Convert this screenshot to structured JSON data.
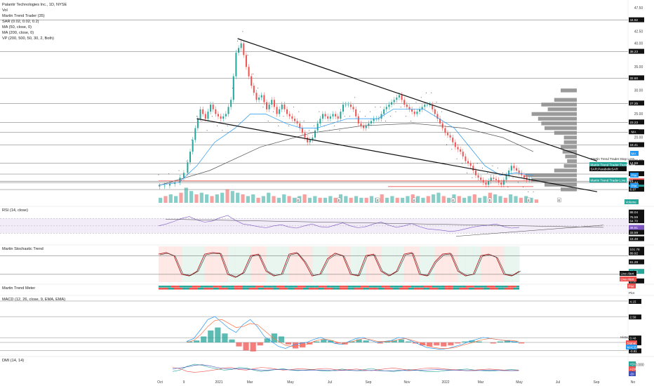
{
  "header": {
    "symbol_line": "Palantir Technologies Inc., 1D, NYSE",
    "indicators": [
      "Vol",
      "Martin Trend Trader (35)",
      "SAR (0.02, 0.02, 0.2)",
      "MA (50, close, 0)",
      "MA (200, close, 0)",
      "VP (200, 500, 50, 30, 2, Both)"
    ]
  },
  "panes": {
    "rsi_title": "RSI (14, close)",
    "stoch_title": "Martin Stochastic Trend",
    "meter_title": "Martin Trend Meter",
    "macd_title": "MACD (12, 26, close, 9, EMA, EMA)",
    "dmi_title": "DMI (14, 14)"
  },
  "colors": {
    "up": "#26a69a",
    "down": "#ef5350",
    "ma50": "#2196f3",
    "ma200": "#555555",
    "vp": "#8a8a8a",
    "rsi": "#7e57c2",
    "grid": "#d4d4d4"
  },
  "chart_data": [
    {
      "type": "candlestick",
      "pane": "price",
      "x_ticks": [
        "Oct",
        "9",
        "2021",
        "Mar",
        "May",
        "Jul",
        "Sep",
        "Nov",
        "2022",
        "Mar",
        "May",
        "Jul",
        "Sep",
        "No"
      ],
      "y_ticks": [
        "47.50",
        "42.50",
        "40.00",
        "35.00",
        "30.00",
        "25.00",
        "20.00",
        "15.00",
        "10.00"
      ],
      "ylim": [
        6,
        48
      ],
      "price_levels": [
        "44.92",
        "38.23",
        "32.60",
        "27.25",
        "23.23",
        "21.15",
        "18.41",
        "14.59",
        "12.25",
        "10.74",
        "10.73",
        "10.44",
        "8.97"
      ],
      "overlay_labels": [
        "Martin Trend Trader:Stop Loss",
        "Martin Trend Trader:Trend Line",
        "SAR:ParabolicSAR",
        "Martin Trend Trader:Live Alert"
      ],
      "side_tags": [
        "MA",
        "MA",
        "Plot",
        "Plot",
        "Volume"
      ],
      "earnings_marker": "E",
      "close_path": [
        [
          0,
          9.6
        ],
        [
          4,
          9.8
        ],
        [
          8,
          10.5
        ],
        [
          11,
          12.5
        ],
        [
          13,
          17
        ],
        [
          15,
          22
        ],
        [
          17,
          26
        ],
        [
          19,
          24
        ],
        [
          21,
          27
        ],
        [
          23,
          25
        ],
        [
          25,
          24
        ],
        [
          27,
          25
        ],
        [
          29,
          28
        ],
        [
          31,
          38
        ],
        [
          33,
          40
        ],
        [
          35,
          35
        ],
        [
          37,
          31
        ],
        [
          39,
          28
        ],
        [
          41,
          29
        ],
        [
          43,
          26
        ],
        [
          45,
          28
        ],
        [
          47,
          25
        ],
        [
          49,
          27
        ],
        [
          51,
          25
        ],
        [
          53,
          24
        ],
        [
          55,
          23
        ],
        [
          57,
          21
        ],
        [
          59,
          19
        ],
        [
          61,
          20
        ],
        [
          63,
          23
        ],
        [
          65,
          25
        ],
        [
          67,
          24
        ],
        [
          69,
          25
        ],
        [
          71,
          24
        ],
        [
          73,
          27
        ],
        [
          75,
          27
        ],
        [
          77,
          26
        ],
        [
          79,
          23
        ],
        [
          81,
          22
        ],
        [
          83,
          23
        ],
        [
          85,
          24
        ],
        [
          87,
          24
        ],
        [
          89,
          26
        ],
        [
          91,
          27
        ],
        [
          93,
          28
        ],
        [
          95,
          29
        ],
        [
          97,
          27
        ],
        [
          99,
          26
        ],
        [
          101,
          25
        ],
        [
          103,
          26
        ],
        [
          105,
          27
        ],
        [
          107,
          27
        ],
        [
          109,
          25
        ],
        [
          111,
          23
        ],
        [
          113,
          21
        ],
        [
          115,
          20
        ],
        [
          117,
          18
        ],
        [
          119,
          17
        ],
        [
          121,
          15
        ],
        [
          123,
          14
        ],
        [
          125,
          12
        ],
        [
          127,
          11
        ],
        [
          129,
          10
        ],
        [
          131,
          11.5
        ],
        [
          133,
          11
        ],
        [
          135,
          10
        ],
        [
          137,
          12
        ],
        [
          139,
          14
        ],
        [
          141,
          13
        ],
        [
          143,
          12
        ],
        [
          145,
          11
        ],
        [
          147,
          11
        ]
      ],
      "ma50_path": [
        [
          0,
          9.9
        ],
        [
          8,
          10.5
        ],
        [
          15,
          14
        ],
        [
          22,
          19
        ],
        [
          30,
          22
        ],
        [
          36,
          25
        ],
        [
          42,
          25
        ],
        [
          50,
          23
        ],
        [
          56,
          22
        ],
        [
          62,
          22
        ],
        [
          68,
          23
        ],
        [
          74,
          24
        ],
        [
          80,
          24
        ],
        [
          86,
          24
        ],
        [
          92,
          26
        ],
        [
          98,
          26
        ],
        [
          104,
          26
        ],
        [
          110,
          24
        ],
        [
          116,
          22
        ],
        [
          122,
          18
        ],
        [
          128,
          14
        ],
        [
          134,
          12
        ],
        [
          140,
          12.5
        ],
        [
          147,
          12
        ]
      ],
      "ma200_path": [
        [
          0,
          9.8
        ],
        [
          20,
          13
        ],
        [
          40,
          18
        ],
        [
          60,
          21
        ],
        [
          80,
          22.5
        ],
        [
          100,
          23
        ],
        [
          120,
          22
        ],
        [
          135,
          20
        ],
        [
          147,
          17
        ]
      ],
      "trend_lines": [
        [
          [
            31,
            41
          ],
          [
            172,
            15
          ]
        ],
        [
          [
            15,
            24
          ],
          [
            172,
            8.5
          ]
        ]
      ],
      "support_lines": [
        [
          [
            90,
            9.6
          ],
          [
            147,
            9.6
          ]
        ],
        [
          [
            0,
            10.8
          ],
          [
            147,
            10.8
          ]
        ]
      ],
      "volume_profile": [
        [
          30,
          0.25
        ],
        [
          28,
          0.35
        ],
        [
          27,
          0.55
        ],
        [
          26,
          0.45
        ],
        [
          25,
          0.7
        ],
        [
          24,
          0.6
        ],
        [
          23,
          0.55
        ],
        [
          22,
          0.5
        ],
        [
          21,
          0.35
        ],
        [
          20,
          0.2
        ],
        [
          19,
          0.2
        ],
        [
          18,
          0.25
        ],
        [
          17,
          0.22
        ],
        [
          16,
          0.18
        ],
        [
          15,
          0.15
        ],
        [
          14,
          0.2
        ],
        [
          13,
          0.35
        ],
        [
          12,
          0.8
        ],
        [
          11,
          0.7
        ],
        [
          10,
          0.5
        ],
        [
          9,
          0.25
        ]
      ],
      "volume": [
        0.3,
        0.4,
        0.5,
        0.4,
        0.6,
        0.9,
        0.7,
        0.5,
        0.6,
        0.5,
        0.4,
        0.5,
        0.6,
        0.8,
        0.7,
        0.6,
        0.5,
        0.4,
        0.5,
        0.3,
        0.4,
        0.6,
        0.4,
        0.3,
        0.5,
        0.4,
        0.3,
        0.4,
        0.5,
        0.3,
        0.4,
        0.3,
        0.3,
        0.4,
        0.3,
        0.5,
        0.4,
        0.3,
        0.4,
        0.3,
        0.3,
        0.4,
        0.3,
        0.5,
        0.3,
        0.4,
        0.3,
        0.3,
        0.4,
        0.5,
        0.4,
        0.3,
        0.4,
        0.5,
        0.6,
        0.4,
        0.3,
        0.5,
        0.4,
        0.3,
        0.4,
        0.5,
        0.3,
        0.4,
        0.6,
        0.5,
        0.4,
        0.3,
        0.5,
        0.4,
        0.3,
        0.4,
        0.3,
        0.2
      ]
    },
    {
      "type": "line",
      "pane": "rsi",
      "y_ticks": [
        "88.04",
        "75.59",
        "64.70",
        "46.81",
        "33.59",
        "16.48"
      ],
      "ylim": [
        10,
        95
      ],
      "series": [
        {
          "values": [
            50,
            55,
            62,
            70,
            75,
            66,
            60,
            63,
            72,
            78,
            65,
            55,
            52,
            48,
            45,
            50,
            53,
            47,
            44,
            50,
            55,
            48,
            46,
            52,
            58,
            50,
            45,
            48,
            55,
            60,
            52,
            46,
            50,
            56,
            48,
            42,
            40,
            38,
            35,
            37,
            42,
            47,
            50,
            52,
            55,
            48,
            44,
            46
          ]
        }
      ]
    },
    {
      "type": "line",
      "pane": "stochastic",
      "y_ticks": [
        "101.78",
        "89.92",
        "61.28",
        "30.65",
        "0.00"
      ],
      "ylim": [
        -5,
        110
      ],
      "side_tags": [
        "Live Alert",
        "Live Alert"
      ],
      "series": [
        {
          "values": [
            85,
            90,
            80,
            20,
            15,
            30,
            85,
            90,
            88,
            20,
            10,
            25,
            80,
            85,
            30,
            15,
            20,
            85,
            90,
            60,
            15,
            20,
            70,
            88,
            80,
            20,
            15,
            80,
            85,
            30,
            15,
            30,
            85,
            90,
            20,
            15,
            60,
            85,
            88,
            30,
            15,
            20,
            80,
            85,
            75,
            20,
            15,
            30
          ]
        }
      ]
    },
    {
      "type": "bar",
      "pane": "trend_meter",
      "side_tags": [
        "Plot",
        "Plot"
      ]
    },
    {
      "type": "bar",
      "pane": "macd",
      "y_ticks": [
        "4.15",
        "2.59",
        "0.48",
        "0.00",
        "-0.81"
      ],
      "ylim": [
        -1.2,
        4.5
      ],
      "side_tags": [
        "Histogram",
        "Signal",
        "MACD"
      ],
      "histogram": [
        0.1,
        0.2,
        0.6,
        1.2,
        1.5,
        0.9,
        0.3,
        -0.4,
        -0.8,
        -0.9,
        -0.3,
        0.4,
        0.9,
        0.6,
        -0.2,
        -0.6,
        -0.5,
        -0.2,
        0.1,
        0.3,
        0.2,
        -0.1,
        -0.2,
        0.1,
        0.3,
        0.2,
        0,
        -0.1,
        0.1,
        0.2,
        0.3,
        0.1,
        -0.1,
        -0.3,
        -0.4,
        -0.3,
        -0.4,
        -0.3,
        -0.1,
        0.1,
        0.2,
        0.1,
        0,
        -0.1,
        0.1,
        0.2,
        0.1,
        -0.1
      ],
      "macd": [
        0.1,
        0.4,
        1.3,
        2.3,
        2.6,
        2.0,
        1.4,
        1.0,
        1.8,
        2.3,
        1.6,
        0.6,
        0.1,
        -0.4,
        -0.6,
        -0.3,
        -0.1,
        0,
        0.3,
        0.5,
        0.2,
        -0.1,
        -0.2,
        0.1,
        0.4,
        0.5,
        0.2,
        0,
        0.1,
        0.2,
        0.5,
        0.4,
        0.1,
        -0.2,
        -0.5,
        -0.6,
        -0.7,
        -0.6,
        -0.4,
        -0.2,
        0.1,
        0.3,
        0.5,
        0.4,
        0.3,
        0.2,
        0.1,
        0
      ],
      "signal": [
        0,
        0.2,
        0.8,
        1.6,
        2.2,
        2.3,
        1.9,
        1.5,
        1.6,
        1.9,
        1.8,
        1.2,
        0.6,
        0.1,
        -0.3,
        -0.4,
        -0.3,
        -0.2,
        0.1,
        0.3,
        0.3,
        0.1,
        -0.1,
        0,
        0.2,
        0.4,
        0.3,
        0.1,
        0.1,
        0.1,
        0.3,
        0.4,
        0.2,
        0,
        -0.3,
        -0.5,
        -0.6,
        -0.6,
        -0.5,
        -0.3,
        -0.1,
        0.1,
        0.3,
        0.4,
        0.3,
        0.2,
        0.2,
        0.1
      ]
    },
    {
      "type": "line",
      "pane": "dmi",
      "y_ticks": [
        "40.000"
      ],
      "ylim": [
        0,
        60
      ],
      "side_tags": [
        "+DI",
        "ADX",
        "-DI"
      ],
      "series": [
        {
          "values": [
            15,
            20,
            35,
            42,
            38,
            30,
            25,
            20,
            22,
            30,
            28,
            20,
            15,
            18,
            22,
            25,
            20,
            18,
            20,
            22,
            18,
            16,
            20,
            24,
            20,
            18,
            22,
            26,
            20,
            17,
            15,
            18,
            22,
            20,
            16,
            14,
            15,
            18,
            20,
            22,
            24,
            20,
            18,
            16,
            18,
            20,
            22,
            20
          ]
        },
        {
          "values": [
            30,
            25,
            15,
            12,
            14,
            18,
            22,
            28,
            30,
            22,
            20,
            25,
            30,
            28,
            24,
            20,
            22,
            25,
            24,
            22,
            25,
            26,
            22,
            20,
            22,
            24,
            20,
            18,
            22,
            25,
            28,
            24,
            20,
            22,
            26,
            28,
            27,
            24,
            22,
            20,
            18,
            20,
            22,
            24,
            22,
            20,
            18,
            20
          ]
        },
        {
          "values": [
            25,
            28,
            32,
            38,
            40,
            36,
            30,
            26,
            24,
            25,
            24,
            22,
            20,
            20,
            22,
            22,
            21,
            20,
            19,
            20,
            20,
            19,
            18,
            19,
            19,
            18,
            18,
            19,
            18,
            17,
            18,
            19,
            18,
            19,
            20,
            21,
            22,
            21,
            20,
            19,
            18,
            18,
            19,
            20,
            19,
            18,
            18,
            18
          ]
        }
      ]
    }
  ]
}
